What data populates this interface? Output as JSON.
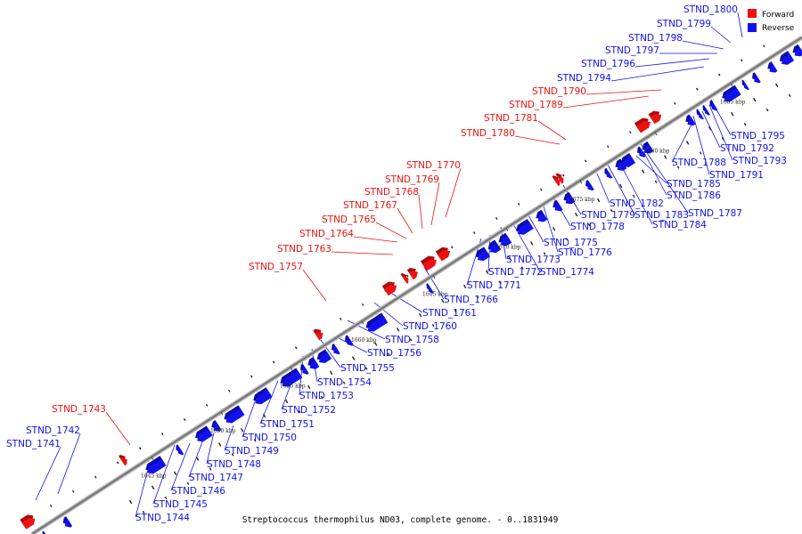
{
  "caption": "Streptococcus thermophilus ND03, complete genome. - 0..1831949",
  "legend": {
    "forward_label": "Forward",
    "reverse_label": "Reverse"
  },
  "colors": {
    "forward": "#ee1111",
    "reverse": "#1111ee",
    "backbone": "#777777"
  },
  "ticks": [
    "1645 kbp",
    "1650 kbp",
    "1655 kbp",
    "1660 kbp",
    "1665 kbp",
    "1670 kbp",
    "1675 kbp",
    "1680 kbp",
    "1685 kbp"
  ],
  "genes_forward": [
    "STND_1743",
    "STND_1757",
    "STND_1763",
    "STND_1764",
    "STND_1765",
    "STND_1767",
    "STND_1768",
    "STND_1769",
    "STND_1770",
    "STND_1780",
    "STND_1781",
    "STND_1789",
    "STND_1790"
  ],
  "genes_reverse_top": [
    "STND_1741",
    "STND_1742",
    "STND_1794",
    "STND_1796",
    "STND_1797",
    "STND_1798",
    "STND_1799",
    "STND_1800"
  ],
  "genes_reverse_bottom": [
    "STND_1744",
    "STND_1745",
    "STND_1746",
    "STND_1747",
    "STND_1748",
    "STND_1749",
    "STND_1750",
    "STND_1751",
    "STND_1752",
    "STND_1753",
    "STND_1754",
    "STND_1755",
    "STND_1756",
    "STND_1758",
    "STND_1760",
    "STND_1761",
    "STND_1766",
    "STND_1771",
    "STND_1772",
    "STND_1773",
    "STND_1774",
    "STND_1775",
    "STND_1776",
    "STND_1778",
    "STND_1779",
    "STND_1782",
    "STND_1783",
    "STND_1784",
    "STND_1785",
    "STND_1786",
    "STND_1787",
    "STND_1788",
    "STND_1791",
    "STND_1792",
    "STND_1793",
    "STND_1795"
  ]
}
